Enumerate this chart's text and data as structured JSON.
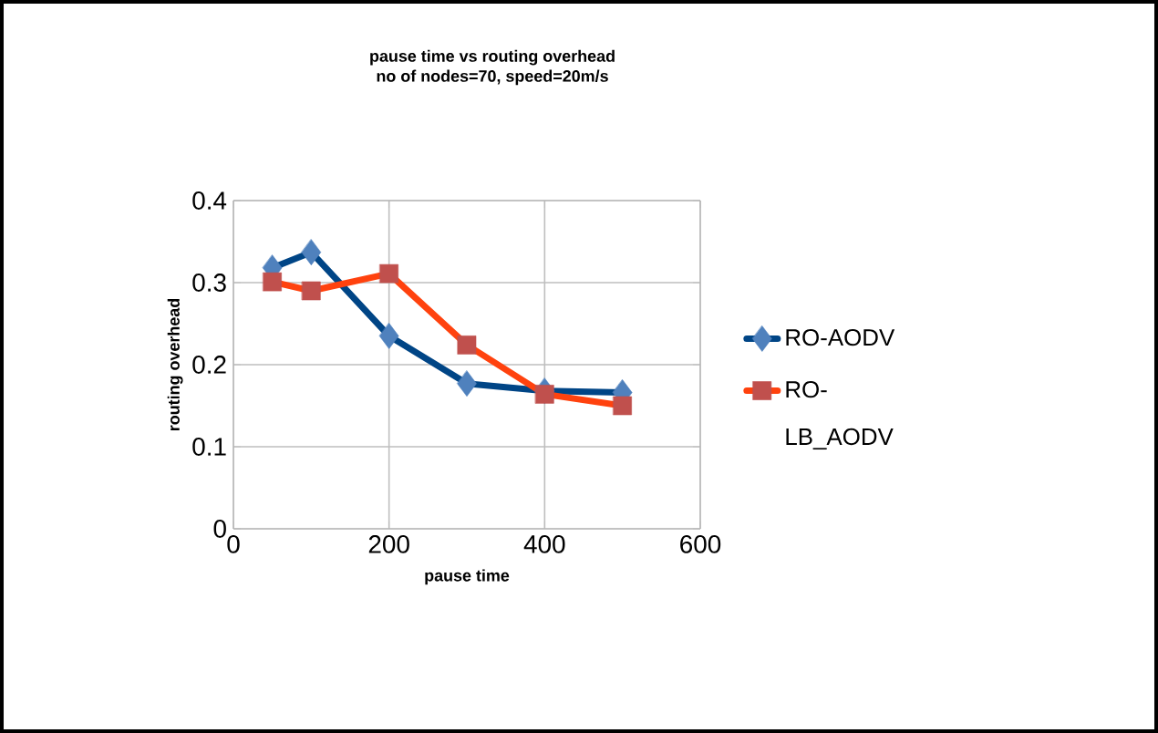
{
  "chart_data": {
    "type": "line",
    "title": "pause time vs routing overhead",
    "subtitle": "no of nodes=70, speed=20m/s",
    "xlabel": "pause time",
    "ylabel": "routing overhead",
    "x": [
      50,
      100,
      200,
      300,
      400,
      500
    ],
    "xlim": [
      0,
      600
    ],
    "xticks": [
      0,
      200,
      400,
      600
    ],
    "ylim": [
      0,
      0.4
    ],
    "yticks": [
      0,
      0.1,
      0.2,
      0.3,
      0.4
    ],
    "grid": true,
    "legend": "right",
    "line_style": "solid",
    "series": [
      {
        "name": "RO-AODV",
        "color": "#004586",
        "colors": [
          "#4f81bd",
          "#4f81bd",
          "#4f81bd",
          "#4f81bd",
          "#4f81bd",
          "#4f81bd"
        ],
        "marker": "diamond",
        "values": [
          0.318,
          0.337,
          0.235,
          0.177,
          0.168,
          0.166
        ]
      },
      {
        "name": "RO-LB_AODV",
        "color": "#ff420e",
        "colors": [
          "#c0504d",
          "#c0504d",
          "#c0504d",
          "#c0504d",
          "#c0504d",
          "#c0504d"
        ],
        "marker": "square",
        "values": [
          0.301,
          0.29,
          0.311,
          0.224,
          0.164,
          0.15
        ]
      }
    ]
  }
}
